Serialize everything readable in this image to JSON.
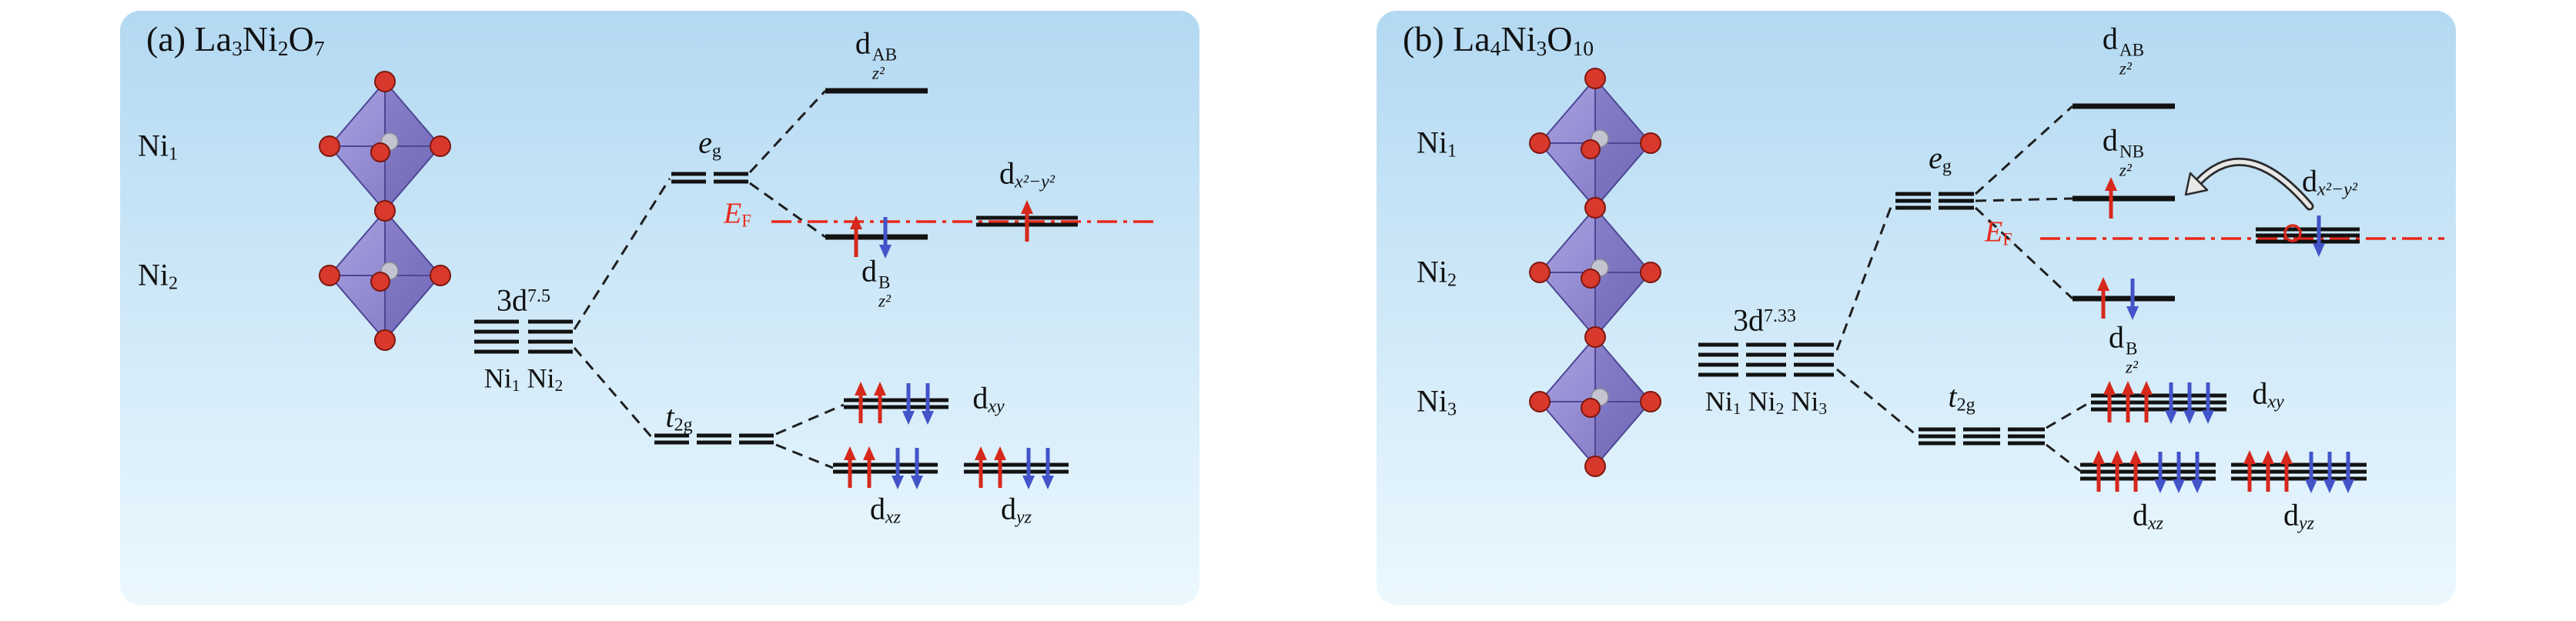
{
  "colors": {
    "spin_up_red": "#d6281c",
    "spin_down_blue": "#4353c8",
    "fermi_red": "#e8291c",
    "level_black": "#121212",
    "panel_blue_top": "#b3d9f2",
    "panel_blue_bottom": "#ebf8fe",
    "octahedron_purple": "#8d84cf",
    "oxygen_red": "#d8392c",
    "nickel_gray": "#c3c4cf"
  },
  "panel_a": {
    "title": [
      {
        "t": "(a) La"
      },
      {
        "t": "3",
        "m": "sub"
      },
      {
        "t": "Ni"
      },
      {
        "t": "2",
        "m": "sub"
      },
      {
        "t": "O"
      },
      {
        "t": "7",
        "m": "sub"
      }
    ],
    "ni1": [
      {
        "t": "Ni"
      },
      {
        "t": "1",
        "m": "sub"
      }
    ],
    "ni2": [
      {
        "t": "Ni"
      },
      {
        "t": "2",
        "m": "sub"
      }
    ],
    "config": [
      {
        "t": "3d"
      },
      {
        "t": "7.5",
        "m": "sup"
      }
    ],
    "sites": [
      {
        "t": "Ni"
      },
      {
        "t": "1",
        "m": "sub"
      },
      {
        "t": " Ni"
      },
      {
        "t": "2",
        "m": "sub"
      }
    ],
    "eg": [
      {
        "t": "e",
        "i": 1
      },
      {
        "t": "g",
        "m": "sub"
      }
    ],
    "t2g": [
      {
        "t": "t",
        "i": 1
      },
      {
        "t": "2g",
        "m": "sub"
      }
    ],
    "ef": [
      {
        "t": "E",
        "i": 1
      },
      {
        "t": "F",
        "m": "sub"
      }
    ],
    "dz2_ab": [
      {
        "t": "d"
      },
      {
        "m": "stack",
        "sup": "AB",
        "sub": "z²"
      }
    ],
    "dz2_b": [
      {
        "t": "d"
      },
      {
        "m": "stack",
        "sup": "B",
        "sub": "z²"
      }
    ],
    "dx2y2": [
      {
        "t": "d"
      },
      {
        "t": "x²−y²",
        "m": "sub",
        "i": 1
      }
    ],
    "dxy": [
      {
        "t": "d"
      },
      {
        "t": "xy",
        "m": "sub",
        "i": 1
      }
    ],
    "dxz": [
      {
        "t": "d"
      },
      {
        "t": "xz",
        "m": "sub",
        "i": 1
      }
    ],
    "dyz": [
      {
        "t": "d"
      },
      {
        "t": "yz",
        "m": "sub",
        "i": 1
      }
    ],
    "occupation": {
      "dz2_AB": "empty",
      "dz2_B": "↑↓",
      "dx2y2": "↑ (at EF)",
      "dxy": "↑↑↓↓",
      "dxz": "↑↑↓↓",
      "dyz": "↑↑↓↓"
    }
  },
  "panel_b": {
    "title": [
      {
        "t": "(b) La"
      },
      {
        "t": "4",
        "m": "sub"
      },
      {
        "t": "Ni"
      },
      {
        "t": "3",
        "m": "sub"
      },
      {
        "t": "O"
      },
      {
        "t": "10",
        "m": "sub"
      }
    ],
    "ni1": [
      {
        "t": "Ni"
      },
      {
        "t": "1",
        "m": "sub"
      }
    ],
    "ni2": [
      {
        "t": "Ni"
      },
      {
        "t": "2",
        "m": "sub"
      }
    ],
    "ni3": [
      {
        "t": "Ni"
      },
      {
        "t": "3",
        "m": "sub"
      }
    ],
    "config": [
      {
        "t": "3d"
      },
      {
        "t": "7.33",
        "m": "sup"
      }
    ],
    "sites": [
      {
        "t": "Ni"
      },
      {
        "t": "1",
        "m": "sub"
      },
      {
        "t": " Ni"
      },
      {
        "t": "2",
        "m": "sub"
      },
      {
        "t": " Ni"
      },
      {
        "t": "3",
        "m": "sub"
      }
    ],
    "eg": [
      {
        "t": "e",
        "i": 1
      },
      {
        "t": "g",
        "m": "sub"
      }
    ],
    "t2g": [
      {
        "t": "t",
        "i": 1
      },
      {
        "t": "2g",
        "m": "sub"
      }
    ],
    "ef": [
      {
        "t": "E",
        "i": 1
      },
      {
        "t": "F",
        "m": "sub"
      }
    ],
    "dz2_ab": [
      {
        "t": "d"
      },
      {
        "m": "stack",
        "sup": "AB",
        "sub": "z²"
      }
    ],
    "dz2_nb": [
      {
        "t": "d"
      },
      {
        "m": "stack",
        "sup": "NB",
        "sub": "z²"
      }
    ],
    "dz2_b": [
      {
        "t": "d"
      },
      {
        "m": "stack",
        "sup": "B",
        "sub": "z²"
      }
    ],
    "dx2y2": [
      {
        "t": "d"
      },
      {
        "t": "x²−y²",
        "m": "sub",
        "i": 1
      }
    ],
    "dxy": [
      {
        "t": "d"
      },
      {
        "t": "xy",
        "m": "sub",
        "i": 1
      }
    ],
    "dxz": [
      {
        "t": "d"
      },
      {
        "t": "xz",
        "m": "sub",
        "i": 1
      }
    ],
    "dyz": [
      {
        "t": "d"
      },
      {
        "t": "yz",
        "m": "sub",
        "i": 1
      }
    ],
    "occupation": {
      "dz2_AB": "empty",
      "dz2_NB": "↑",
      "dz2_B": "↑↓",
      "dx2y2": "○↓ (hole + down spin)",
      "dxy": "↑↑↑↓↓↓",
      "dxz": "↑↑↑↓↓↓",
      "dyz": "↑↑↑↓↓↓",
      "transfer": "electron transfer dx²−y² → dz² NB (curved arrow)"
    }
  }
}
